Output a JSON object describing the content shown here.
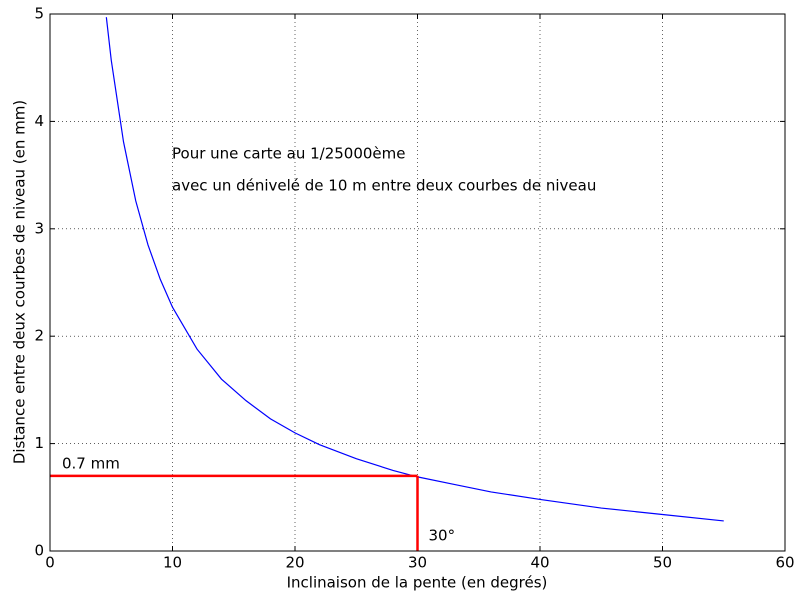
{
  "chart_data": {
    "type": "line",
    "xlabel": "Inclinaison de la pente (en degrés)",
    "ylabel": "Distance entre deux courbes de niveau (en mm)",
    "annotations": [
      "Pour une carte au 1/25000ème",
      "avec un dénivelé de 10 m entre deux courbes de niveau"
    ],
    "x": [
      4.6,
      5,
      6,
      7,
      8,
      9,
      10,
      12,
      14,
      16,
      18,
      20,
      22,
      25,
      28,
      30,
      33,
      36,
      40,
      45,
      50,
      55
    ],
    "series": [
      {
        "color": "#0000ff",
        "values": [
          4.97,
          4.57,
          3.81,
          3.26,
          2.85,
          2.53,
          2.27,
          1.88,
          1.6,
          1.4,
          1.23,
          1.1,
          0.99,
          0.86,
          0.75,
          0.69,
          0.62,
          0.55,
          0.48,
          0.4,
          0.34,
          0.28
        ]
      }
    ],
    "reference": {
      "x": 30,
      "y": 0.7,
      "x_label": "30°",
      "y_label": "0.7 mm",
      "color": "#ff0000"
    },
    "xlim": [
      0,
      60
    ],
    "xticks": [
      0,
      10,
      20,
      30,
      40,
      50,
      60
    ],
    "ylim": [
      0,
      5
    ],
    "yticks": [
      0,
      1,
      2,
      3,
      4,
      5
    ],
    "grid": true
  }
}
